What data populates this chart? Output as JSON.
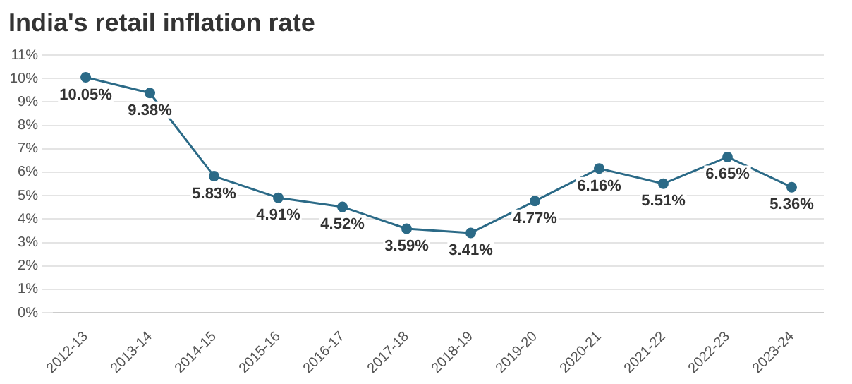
{
  "chart_data": {
    "type": "line",
    "title": "India's retail inflation rate",
    "categories": [
      "2012-13",
      "2013-14",
      "2014-15",
      "2015-16",
      "2016-17",
      "2017-18",
      "2018-19",
      "2019-20",
      "2020-21",
      "2021-22",
      "2022-23",
      "2023-24"
    ],
    "values": [
      10.05,
      9.38,
      5.83,
      4.91,
      4.52,
      3.59,
      3.41,
      4.77,
      6.16,
      5.51,
      6.65,
      5.36
    ],
    "value_labels": [
      "10.05%",
      "9.38%",
      "5.83%",
      "4.91%",
      "4.52%",
      "3.59%",
      "3.41%",
      "4.77%",
      "6.16%",
      "5.51%",
      "6.65%",
      "5.36%"
    ],
    "color": "#2b6a87",
    "marker": "circle",
    "line_style": "solid",
    "grid": "y",
    "legend": false,
    "ylim": [
      0,
      11
    ],
    "yticks": [
      {
        "value": 0,
        "label": "0%"
      },
      {
        "value": 1,
        "label": "1%"
      },
      {
        "value": 2,
        "label": "2%"
      },
      {
        "value": 3,
        "label": "3%"
      },
      {
        "value": 4,
        "label": "4%"
      },
      {
        "value": 5,
        "label": "5%"
      },
      {
        "value": 6,
        "label": "6%"
      },
      {
        "value": 7,
        "label": "7%"
      },
      {
        "value": 8,
        "label": "8%"
      },
      {
        "value": 9,
        "label": "9%"
      },
      {
        "value": 10,
        "label": "10%"
      },
      {
        "value": 11,
        "label": "11%"
      }
    ]
  }
}
